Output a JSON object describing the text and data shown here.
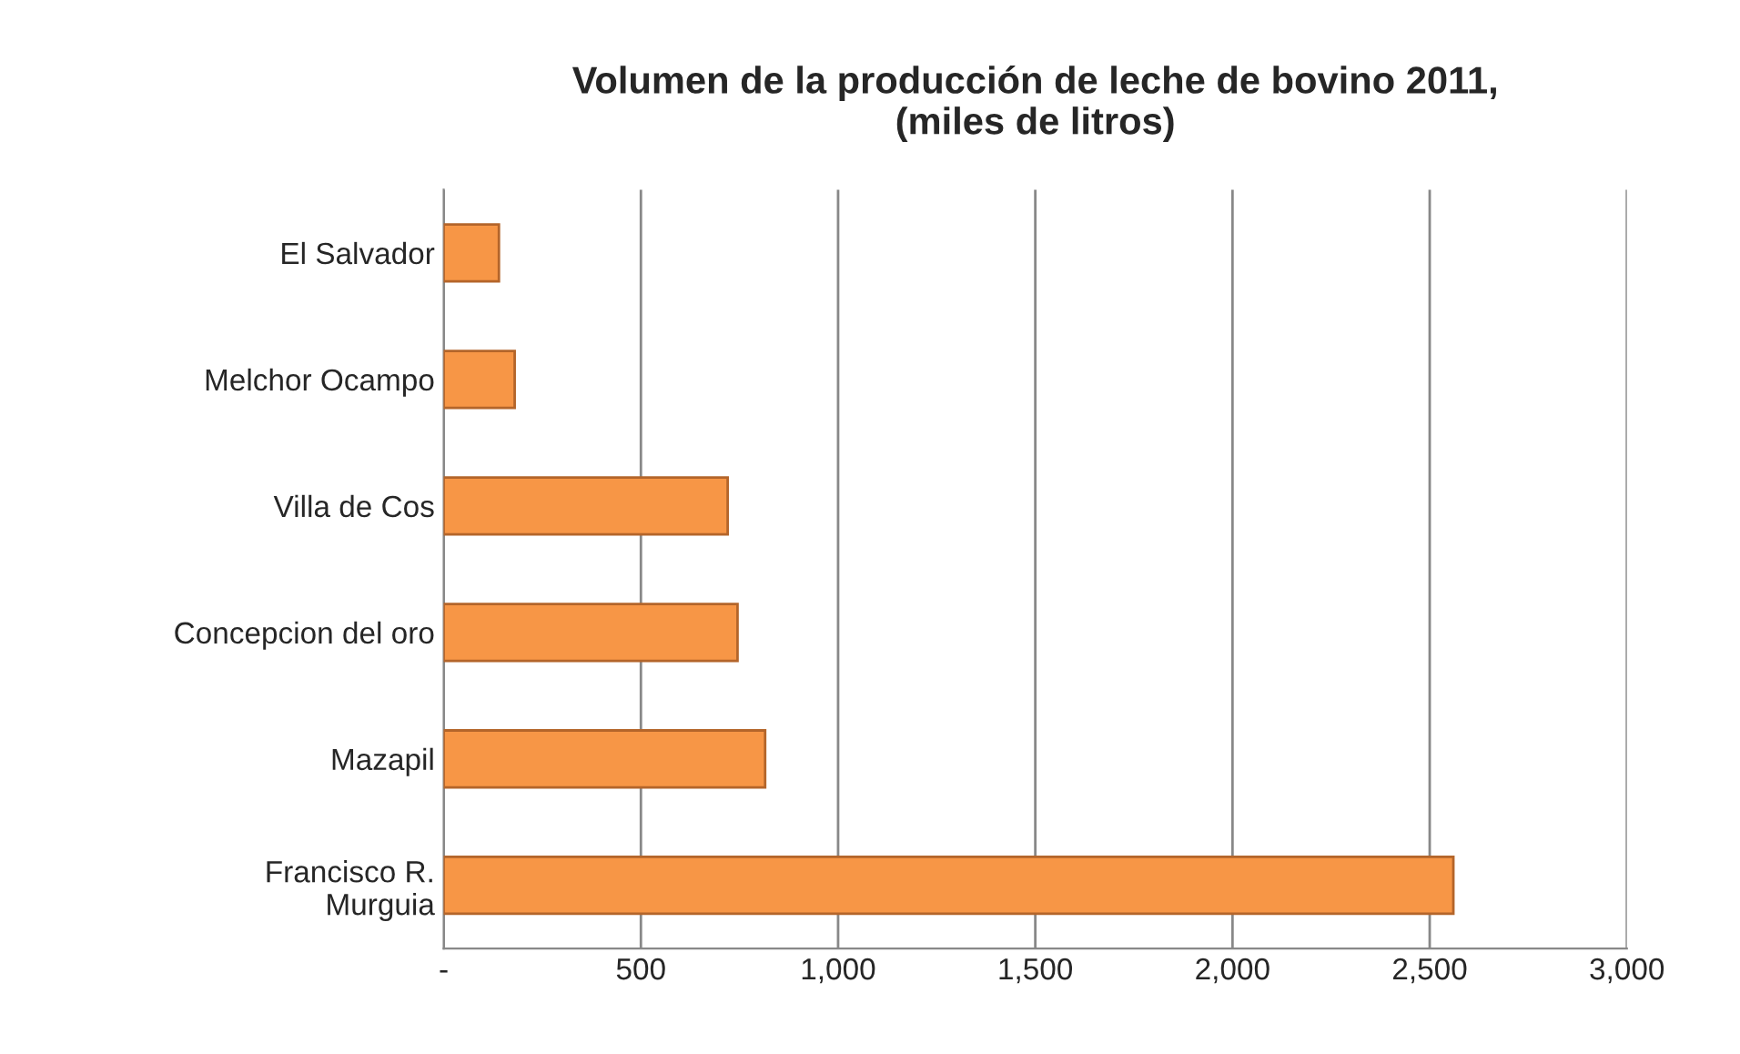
{
  "chart_data": {
    "type": "bar",
    "orientation": "horizontal",
    "title": "Volumen de la producción de leche de bovino 2011,\n(miles de litros)",
    "categories": [
      "El Salvador",
      "Melchor Ocampo",
      "Villa de Cos",
      "Concepcion del oro",
      "Mazapil",
      "Francisco R.\nMurguia"
    ],
    "values": [
      140,
      180,
      720,
      745,
      815,
      2560
    ],
    "color": "#f79646",
    "xlim": [
      0,
      3000
    ],
    "xticks": [
      {
        "value": 0,
        "label": "-"
      },
      {
        "value": 500,
        "label": "500"
      },
      {
        "value": 1000,
        "label": "1,000"
      },
      {
        "value": 1500,
        "label": "1,500"
      },
      {
        "value": 2000,
        "label": "2,000"
      },
      {
        "value": 2500,
        "label": "2,500"
      },
      {
        "value": 3000,
        "label": "3,000"
      }
    ],
    "grid": "x"
  }
}
